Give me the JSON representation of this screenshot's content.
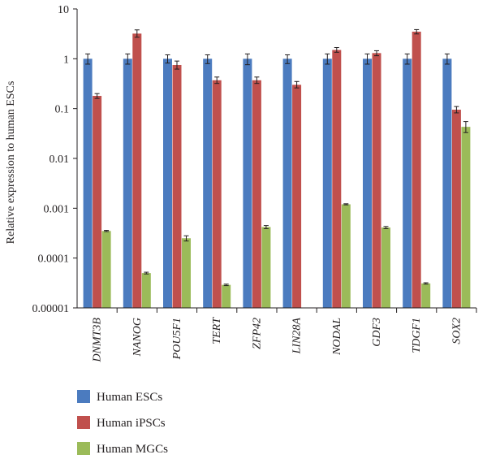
{
  "chart_data": {
    "type": "bar",
    "title": "",
    "xlabel": "",
    "ylabel": "Relative expression to human ESCs",
    "yscale": "log",
    "ylim": [
      1e-05,
      10
    ],
    "yticks": [
      "10",
      "1",
      "0.1",
      "0.01",
      "0.001",
      "0.0001",
      "0.00001"
    ],
    "grid": false,
    "legend_position": "bottom-left",
    "categories": [
      "DNMT3B",
      "NANOG",
      "POU5F1",
      "TERT",
      "ZFP42",
      "LIN28A",
      "NODAL",
      "GDF3",
      "TDGF1",
      "SOX2"
    ],
    "series": [
      {
        "name": "Human ESCs",
        "color": "#4b7bbf",
        "values": [
          1,
          1,
          1,
          1,
          1,
          1,
          1,
          1,
          1,
          1
        ],
        "err_low": [
          0.78,
          0.78,
          0.82,
          0.8,
          0.76,
          0.8,
          0.78,
          0.78,
          0.78,
          0.78
        ],
        "err_high": [
          1.25,
          1.25,
          1.2,
          1.2,
          1.25,
          1.2,
          1.25,
          1.25,
          1.25,
          1.25
        ]
      },
      {
        "name": "Human iPSCs",
        "color": "#c0504d",
        "values": [
          0.18,
          3.2,
          0.75,
          0.37,
          0.37,
          0.3,
          1.5,
          1.3,
          3.5,
          0.095
        ],
        "err_low": [
          0.16,
          2.7,
          0.62,
          0.32,
          0.32,
          0.26,
          1.35,
          1.15,
          3.15,
          0.082
        ],
        "err_high": [
          0.2,
          3.8,
          0.9,
          0.43,
          0.43,
          0.35,
          1.68,
          1.45,
          3.85,
          0.11
        ]
      },
      {
        "name": "Human MGCs",
        "color": "#9bbb59",
        "values": [
          0.00035,
          5e-05,
          0.00025,
          2.9e-05,
          0.00042,
          null,
          0.0012,
          0.00041,
          3.1e-05,
          0.043
        ],
        "err_low": [
          0.00034,
          4.8e-05,
          0.00022,
          2.8e-05,
          0.00039,
          null,
          0.00117,
          0.00039,
          3e-05,
          0.033
        ],
        "err_high": [
          0.00036,
          5.2e-05,
          0.00028,
          3e-05,
          0.00045,
          null,
          0.00123,
          0.00043,
          3.2e-05,
          0.055
        ]
      }
    ]
  }
}
